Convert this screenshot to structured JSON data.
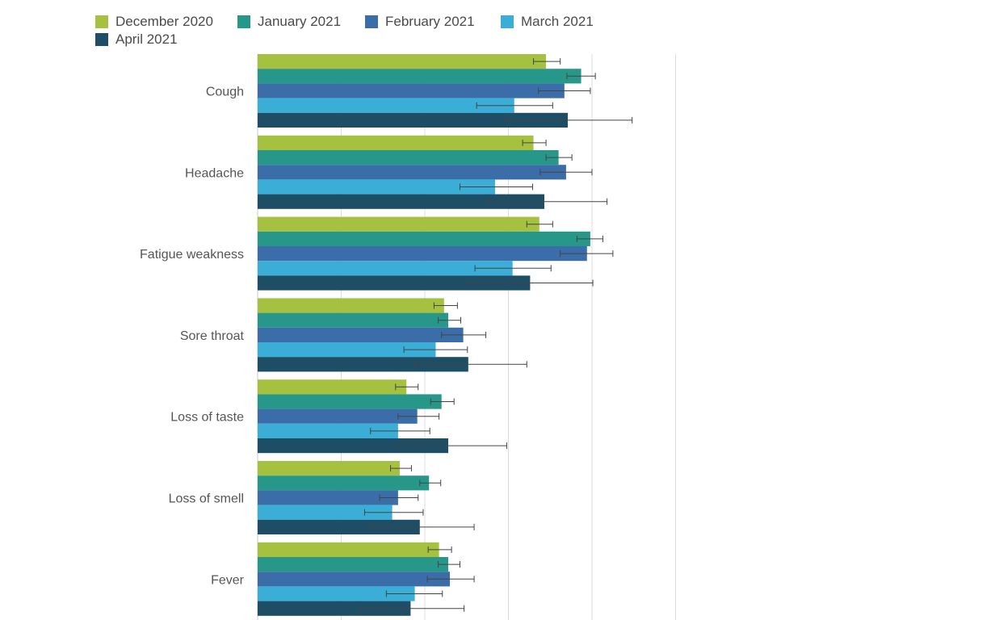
{
  "chart_data": {
    "type": "bar",
    "orientation": "horizontal",
    "title": "",
    "xlabel": "",
    "ylabel": "",
    "grid": true,
    "legend_position": "top-left",
    "error_bars": true,
    "categories": [
      "Cough",
      "Headache",
      "Fatigue weakness",
      "Sore throat",
      "Loss of taste",
      "Loss of smell",
      "Fever"
    ],
    "series": [
      {
        "name": "December 2020",
        "color": "#a6c040",
        "values": [
          34.5,
          33.0,
          33.7,
          22.3,
          17.8,
          17.0,
          21.7
        ],
        "error": [
          [
            33.0,
            36.2
          ],
          [
            31.7,
            34.5
          ],
          [
            32.2,
            35.3
          ],
          [
            21.1,
            23.9
          ],
          [
            16.5,
            19.2
          ],
          [
            15.9,
            18.4
          ],
          [
            20.4,
            23.2
          ]
        ]
      },
      {
        "name": "January 2021",
        "color": "#27978a",
        "values": [
          38.7,
          36.0,
          39.8,
          22.8,
          22.0,
          20.5,
          22.8
        ],
        "error": [
          [
            37.0,
            40.4
          ],
          [
            34.5,
            37.6
          ],
          [
            38.2,
            41.3
          ],
          [
            21.6,
            24.3
          ],
          [
            20.7,
            23.5
          ],
          [
            19.4,
            21.9
          ],
          [
            21.6,
            24.2
          ]
        ]
      },
      {
        "name": "February 2021",
        "color": "#3b6ea8",
        "values": [
          36.7,
          36.9,
          39.4,
          24.6,
          19.1,
          16.8,
          23.0
        ],
        "error": [
          [
            33.6,
            39.8
          ],
          [
            33.8,
            40.0
          ],
          [
            36.2,
            42.5
          ],
          [
            22.0,
            27.3
          ],
          [
            16.8,
            21.7
          ],
          [
            14.6,
            19.2
          ],
          [
            20.3,
            25.9
          ]
        ]
      },
      {
        "name": "March 2021",
        "color": "#3aaed6",
        "values": [
          30.7,
          28.4,
          30.5,
          21.3,
          16.8,
          16.1,
          18.8
        ],
        "error": [
          [
            26.2,
            35.3
          ],
          [
            24.2,
            32.9
          ],
          [
            26.0,
            35.1
          ],
          [
            17.5,
            25.1
          ],
          [
            13.5,
            20.6
          ],
          [
            12.8,
            19.8
          ],
          [
            15.4,
            22.1
          ]
        ]
      },
      {
        "name": "April 2021",
        "color": "#1d4e66",
        "values": [
          37.1,
          34.3,
          32.6,
          25.2,
          22.8,
          19.4,
          18.3
        ],
        "error": [
          [
            29.6,
            44.8
          ],
          [
            27.7,
            41.8
          ],
          [
            25.2,
            40.1
          ],
          [
            18.7,
            32.2
          ],
          [
            16.6,
            29.8
          ],
          [
            13.6,
            25.9
          ],
          [
            12.4,
            24.7
          ]
        ]
      }
    ],
    "xlim": [
      0,
      50
    ],
    "grid_step": 10
  }
}
